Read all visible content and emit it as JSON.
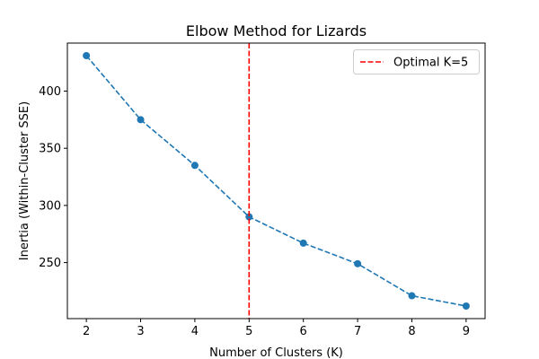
{
  "chart_data": {
    "type": "line",
    "title": "Elbow Method for Lizards",
    "xlabel": "Number of Clusters (K)",
    "ylabel": "Inertia (Within-Cluster SSE)",
    "x": [
      2,
      3,
      4,
      5,
      6,
      7,
      8,
      9
    ],
    "series": [
      {
        "values": [
          431,
          375,
          335,
          290,
          267,
          249,
          221,
          212
        ],
        "color": "#1f77b4",
        "line_style": "dashed",
        "marker": "circle"
      }
    ],
    "xlim": [
      1.65,
      9.35
    ],
    "ylim": [
      201,
      442
    ],
    "xticks": [
      2,
      3,
      4,
      5,
      6,
      7,
      8,
      9
    ],
    "yticks": [
      250,
      300,
      350,
      400
    ],
    "grid": false,
    "reference_lines": [
      {
        "orientation": "vertical",
        "x": 5,
        "color": "#ff0000",
        "line_style": "dashed",
        "label": "Optimal K=5"
      }
    ],
    "legend": {
      "position": "upper right",
      "entries": [
        "Optimal K=5"
      ]
    }
  }
}
